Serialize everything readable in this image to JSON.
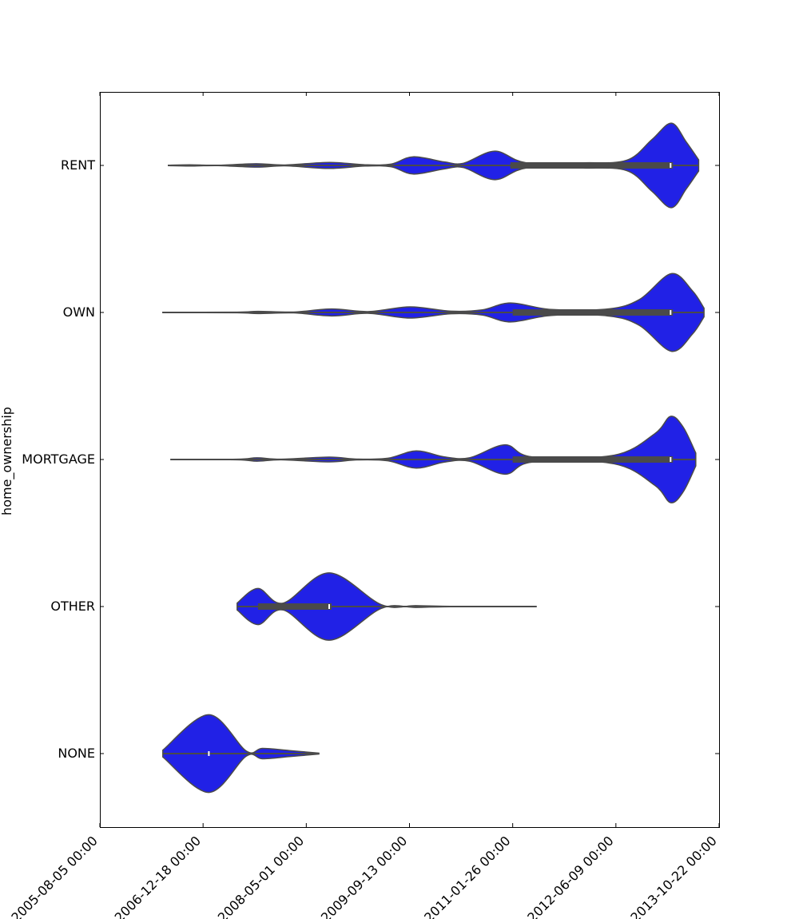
{
  "chart_data": {
    "type": "violin",
    "orientation": "horizontal",
    "title": "",
    "xlabel": "",
    "ylabel": "home_ownership",
    "x_scale": "date",
    "xlim": [
      "2005-08-05",
      "2013-10-22"
    ],
    "x_ticks": [
      "2005-08-05",
      "2006-12-18",
      "2008-05-01",
      "2009-09-13",
      "2011-01-26",
      "2012-06-09",
      "2013-10-22"
    ],
    "x_tick_labels": [
      "2005-08-05 00:00",
      "2006-12-18 00:00",
      "2008-05-01 00:00",
      "2009-09-13 00:00",
      "2011-01-26 00:00",
      "2012-06-09 00:00",
      "2013-10-22 00:00"
    ],
    "categories": [
      "RENT",
      "OWN",
      "MORTGAGE",
      "OTHER",
      "NONE"
    ],
    "grid": false,
    "fill_color": "#2121e6",
    "edge_color": "#4a4a4a",
    "box_color": "#4a4a4a",
    "median_color": "#ffffff",
    "violins": [
      {
        "category": "RENT",
        "min": "2006-07-03",
        "q1": "2011-01-15",
        "median": "2013-03-01",
        "q3": "2013-03-01",
        "max": "2013-07-15",
        "density": [
          [
            "2006-07-03",
            0.005
          ],
          [
            "2006-10-15",
            0.015
          ],
          [
            "2007-03-01",
            0.004
          ],
          [
            "2007-09-01",
            0.04
          ],
          [
            "2008-01-20",
            0.01
          ],
          [
            "2008-08-20",
            0.07
          ],
          [
            "2009-02-10",
            0.015
          ],
          [
            "2009-06-15",
            0.03
          ],
          [
            "2009-10-01",
            0.2
          ],
          [
            "2010-03-01",
            0.08
          ],
          [
            "2010-06-01",
            0.05
          ],
          [
            "2010-11-01",
            0.33
          ],
          [
            "2011-04-01",
            0.06
          ],
          [
            "2012-01-01",
            0.06
          ],
          [
            "2012-08-01",
            0.12
          ],
          [
            "2012-12-01",
            0.6
          ],
          [
            "2013-03-05",
            0.98
          ],
          [
            "2013-05-15",
            0.55
          ],
          [
            "2013-07-15",
            0.13
          ]
        ]
      },
      {
        "category": "OWN",
        "min": "2006-06-06",
        "q1": "2011-01-26",
        "median": "2013-03-01",
        "q3": "2013-03-01",
        "max": "2013-08-10",
        "density": [
          [
            "2006-06-06",
            0.004
          ],
          [
            "2007-06-01",
            0.008
          ],
          [
            "2007-09-10",
            0.025
          ],
          [
            "2008-03-01",
            0.01
          ],
          [
            "2008-09-01",
            0.08
          ],
          [
            "2009-03-01",
            0.02
          ],
          [
            "2009-09-15",
            0.13
          ],
          [
            "2010-04-01",
            0.03
          ],
          [
            "2010-09-01",
            0.06
          ],
          [
            "2011-01-15",
            0.22
          ],
          [
            "2011-08-01",
            0.07
          ],
          [
            "2012-05-01",
            0.08
          ],
          [
            "2012-10-01",
            0.3
          ],
          [
            "2013-03-05",
            0.9
          ],
          [
            "2013-06-15",
            0.5
          ],
          [
            "2013-08-10",
            0.1
          ]
        ]
      },
      {
        "category": "MORTGAGE",
        "min": "2006-07-15",
        "q1": "2011-01-26",
        "median": "2013-03-01",
        "q3": "2013-03-01",
        "max": "2013-07-01",
        "density": [
          [
            "2006-07-15",
            0.004
          ],
          [
            "2007-06-01",
            0.006
          ],
          [
            "2007-09-05",
            0.04
          ],
          [
            "2008-01-01",
            0.008
          ],
          [
            "2008-08-20",
            0.055
          ],
          [
            "2009-01-01",
            0.01
          ],
          [
            "2009-06-01",
            0.03
          ],
          [
            "2009-10-15",
            0.2
          ],
          [
            "2010-03-01",
            0.06
          ],
          [
            "2010-07-01",
            0.04
          ],
          [
            "2010-12-20",
            0.34
          ],
          [
            "2011-05-01",
            0.06
          ],
          [
            "2012-06-01",
            0.1
          ],
          [
            "2012-12-15",
            0.6
          ],
          [
            "2013-03-01",
            1.0
          ],
          [
            "2013-05-01",
            0.75
          ],
          [
            "2013-07-01",
            0.15
          ]
        ]
      },
      {
        "category": "OTHER",
        "min": "2007-06-01",
        "q1": "2007-09-10",
        "median": "2008-08-20",
        "q3": "2008-08-20",
        "max": "2011-05-20",
        "density": [
          [
            "2007-06-01",
            0.08
          ],
          [
            "2007-09-10",
            0.42
          ],
          [
            "2008-01-10",
            0.08
          ],
          [
            "2008-08-20",
            0.78
          ],
          [
            "2009-05-01",
            0.04
          ],
          [
            "2009-10-15",
            0.02
          ],
          [
            "2010-05-01",
            0.003
          ],
          [
            "2011-01-01",
            0.004
          ],
          [
            "2011-05-20",
            0.002
          ]
        ]
      },
      {
        "category": "NONE",
        "min": "2006-06-06",
        "median": "2007-01-15",
        "max": "2008-07-01",
        "density": [
          [
            "2006-06-06",
            0.08
          ],
          [
            "2007-01-15",
            0.9
          ],
          [
            "2007-07-15",
            0.06
          ],
          [
            "2007-10-01",
            0.12
          ],
          [
            "2008-02-10",
            0.07
          ],
          [
            "2008-07-01",
            0.01
          ]
        ]
      }
    ]
  }
}
